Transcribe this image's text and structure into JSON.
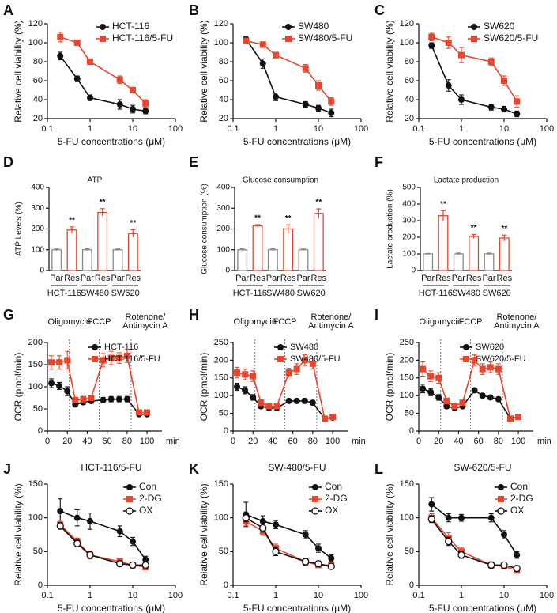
{
  "chart_data": [
    {
      "type": "line",
      "label": "A",
      "xscale": "log",
      "xlabel": "5-FU concentrations (μM)",
      "ylabel": "Relative cell viability (%)",
      "xlim": [
        0.1,
        100
      ],
      "xticks": [
        0.1,
        1,
        10,
        100
      ],
      "ylim": [
        20,
        120
      ],
      "yticks": [
        20,
        40,
        60,
        80,
        100,
        120
      ],
      "legend": "upper right",
      "x": [
        0.2,
        0.5,
        1,
        5,
        10,
        20
      ],
      "series": [
        {
          "name": "HCT-116",
          "color": "#111111",
          "marker": "circle",
          "values": [
            86,
            62,
            42,
            35,
            30,
            28
          ],
          "errors": [
            4,
            3,
            3,
            5,
            4,
            3
          ]
        },
        {
          "name": "HCT-116/5-FU",
          "color": "#e8452c",
          "marker": "square",
          "values": [
            106,
            100,
            80,
            61,
            50,
            36
          ],
          "errors": [
            5,
            3,
            3,
            4,
            3,
            4
          ]
        }
      ]
    },
    {
      "type": "line",
      "label": "B",
      "xscale": "log",
      "xlabel": "5-FU concentrations (μM)",
      "ylabel": "Relative cell viability (%)",
      "xlim": [
        0.1,
        100
      ],
      "xticks": [
        0.1,
        1,
        10,
        100
      ],
      "ylim": [
        20,
        120
      ],
      "yticks": [
        20,
        40,
        60,
        80,
        100,
        120
      ],
      "legend": "upper right",
      "x": [
        0.2,
        0.5,
        1,
        5,
        10,
        20
      ],
      "series": [
        {
          "name": "SW480",
          "color": "#111111",
          "marker": "circle",
          "values": [
            104,
            78,
            43,
            35,
            31,
            26
          ],
          "errors": [
            3,
            5,
            4,
            3,
            3,
            4
          ]
        },
        {
          "name": "SW480/5-FU",
          "color": "#e8452c",
          "marker": "square",
          "values": [
            102,
            98,
            87,
            73,
            55,
            38
          ],
          "errors": [
            3,
            3,
            3,
            4,
            5,
            4
          ]
        }
      ]
    },
    {
      "type": "line",
      "label": "C",
      "xscale": "log",
      "xlabel": "5-FU concentrations (μM)",
      "ylabel": "Relative cell viability (%)",
      "xlim": [
        0.1,
        100
      ],
      "xticks": [
        0.1,
        1,
        10,
        100
      ],
      "ylim": [
        20,
        120
      ],
      "yticks": [
        20,
        40,
        60,
        80,
        100,
        120
      ],
      "legend": "upper right",
      "x": [
        0.2,
        0.5,
        1,
        5,
        10,
        20
      ],
      "series": [
        {
          "name": "SW620",
          "color": "#111111",
          "marker": "circle",
          "values": [
            97,
            55,
            40,
            32,
            30,
            25
          ],
          "errors": [
            3,
            6,
            5,
            3,
            3,
            3
          ]
        },
        {
          "name": "SW620/5-FU",
          "color": "#e8452c",
          "marker": "square",
          "values": [
            106,
            100,
            87,
            80,
            60,
            38
          ],
          "errors": [
            4,
            6,
            8,
            4,
            5,
            6
          ]
        }
      ]
    },
    {
      "type": "bar",
      "label": "D",
      "title": "ATP",
      "ylabel": "ATP Levels (%)",
      "ylim": [
        0,
        400
      ],
      "yticks": [
        0,
        100,
        200,
        300,
        400
      ],
      "categories": [
        "Par",
        "Res",
        "Par",
        "Res",
        "Par",
        "Res"
      ],
      "groups": [
        "HCT-116",
        "SW480",
        "SW620"
      ],
      "colors": [
        "#888888",
        "#e8452c",
        "#888888",
        "#e8452c",
        "#888888",
        "#e8452c"
      ],
      "values": [
        100,
        195,
        100,
        280,
        100,
        178
      ],
      "errors": [
        5,
        15,
        5,
        18,
        4,
        18
      ],
      "significance": [
        null,
        "**",
        null,
        "**",
        null,
        "**"
      ]
    },
    {
      "type": "bar",
      "label": "E",
      "title": "Glucose consumption",
      "ylabel": "Glucose consumption (%)",
      "ylim": [
        0,
        400
      ],
      "yticks": [
        0,
        100,
        200,
        300,
        400
      ],
      "categories": [
        "Par",
        "Res",
        "Par",
        "Res",
        "Par",
        "Res"
      ],
      "groups": [
        "HCT-116",
        "SW480",
        "SW620"
      ],
      "colors": [
        "#888888",
        "#e8452c",
        "#888888",
        "#e8452c",
        "#888888",
        "#e8452c"
      ],
      "values": [
        100,
        215,
        100,
        200,
        100,
        275
      ],
      "errors": [
        5,
        6,
        5,
        20,
        4,
        22
      ],
      "significance": [
        null,
        "**",
        null,
        "**",
        null,
        "**"
      ]
    },
    {
      "type": "bar",
      "label": "F",
      "title": "Lactate production",
      "ylabel": "Lactate production (%)",
      "ylim": [
        0,
        500
      ],
      "yticks": [
        0,
        100,
        200,
        300,
        400,
        500
      ],
      "categories": [
        "Par",
        "Res",
        "Par",
        "Res",
        "Par",
        "Res"
      ],
      "groups": [
        "HCT-116",
        "SW480",
        "SW620"
      ],
      "colors": [
        "#888888",
        "#e8452c",
        "#888888",
        "#e8452c",
        "#888888",
        "#e8452c"
      ],
      "values": [
        100,
        330,
        100,
        205,
        100,
        195
      ],
      "errors": [
        3,
        30,
        5,
        12,
        5,
        18
      ],
      "significance": [
        null,
        "**",
        null,
        "**",
        null,
        "**"
      ]
    },
    {
      "type": "line",
      "label": "G",
      "xscale": "linear",
      "xlabel": "min",
      "ylabel": "OCR (pmol/min)",
      "xlim": [
        0,
        115
      ],
      "xticks": [
        0,
        20,
        40,
        60,
        80,
        100
      ],
      "ylim": [
        0,
        200
      ],
      "yticks": [
        0,
        50,
        100,
        150,
        200
      ],
      "legend": "upper right",
      "annotations": [
        {
          "label": [
            "Oligomycin"
          ],
          "x": 22
        },
        {
          "label": [
            "FCCP"
          ],
          "x": 52
        },
        {
          "label": [
            "Rotenone/",
            "Antimycin A"
          ],
          "x": 84
        }
      ],
      "x": [
        4,
        12,
        20,
        28,
        36,
        44,
        56,
        64,
        72,
        80,
        92,
        100
      ],
      "series": [
        {
          "name": "HCT-116",
          "color": "#111111",
          "marker": "circle",
          "values": [
            108,
            102,
            90,
            60,
            65,
            68,
            70,
            72,
            72,
            72,
            38,
            38
          ],
          "errors": [
            10,
            8,
            10,
            5,
            5,
            5,
            6,
            6,
            6,
            6,
            3,
            3
          ]
        },
        {
          "name": "HCT-116/5-FU",
          "color": "#e8452c",
          "marker": "square",
          "values": [
            155,
            155,
            160,
            70,
            72,
            75,
            160,
            165,
            165,
            170,
            42,
            42
          ],
          "errors": [
            15,
            15,
            20,
            6,
            6,
            6,
            15,
            15,
            12,
            15,
            4,
            4
          ]
        }
      ]
    },
    {
      "type": "line",
      "label": "H",
      "xscale": "linear",
      "xlabel": "min",
      "ylabel": "OCR (pmol/min)",
      "xlim": [
        0,
        115
      ],
      "xticks": [
        0,
        20,
        40,
        60,
        80,
        100
      ],
      "ylim": [
        0,
        250
      ],
      "yticks": [
        0,
        50,
        100,
        150,
        200,
        250
      ],
      "legend": "upper right",
      "annotations": [
        {
          "label": [
            "Oligomycin"
          ],
          "x": 22
        },
        {
          "label": [
            "FCCP"
          ],
          "x": 52
        },
        {
          "label": [
            "Rotenone/",
            "Antimycin A"
          ],
          "x": 84
        }
      ],
      "x": [
        4,
        12,
        20,
        28,
        36,
        44,
        56,
        64,
        72,
        80,
        92,
        100
      ],
      "series": [
        {
          "name": "SW480",
          "color": "#111111",
          "marker": "circle",
          "values": [
            125,
            115,
            95,
            70,
            65,
            65,
            85,
            85,
            85,
            80,
            35,
            38
          ],
          "errors": [
            10,
            10,
            8,
            6,
            5,
            5,
            6,
            6,
            6,
            6,
            3,
            3
          ]
        },
        {
          "name": "SW480/5-FU",
          "color": "#e8452c",
          "marker": "square",
          "values": [
            165,
            160,
            155,
            80,
            70,
            70,
            165,
            175,
            200,
            190,
            35,
            40
          ],
          "errors": [
            15,
            15,
            15,
            8,
            6,
            6,
            12,
            15,
            15,
            15,
            4,
            4
          ]
        }
      ]
    },
    {
      "type": "line",
      "label": "I",
      "xscale": "linear",
      "xlabel": "min",
      "ylabel": "OCR (pmol/min)",
      "xlim": [
        0,
        115
      ],
      "xticks": [
        0,
        20,
        40,
        60,
        80,
        100
      ],
      "ylim": [
        0,
        250
      ],
      "yticks": [
        0,
        50,
        100,
        150,
        200,
        250
      ],
      "legend": "upper right",
      "annotations": [
        {
          "label": [
            "Oligomycin"
          ],
          "x": 22
        },
        {
          "label": [
            "FCCP"
          ],
          "x": 52
        },
        {
          "label": [
            "Rotenone/",
            "Antimycin A"
          ],
          "x": 84
        }
      ],
      "x": [
        4,
        12,
        20,
        28,
        36,
        44,
        56,
        64,
        72,
        80,
        92,
        100
      ],
      "series": [
        {
          "name": "SW620",
          "color": "#111111",
          "marker": "circle",
          "values": [
            120,
            110,
            95,
            70,
            65,
            70,
            115,
            100,
            95,
            90,
            35,
            40
          ],
          "errors": [
            12,
            10,
            8,
            6,
            5,
            5,
            6,
            6,
            6,
            6,
            3,
            3
          ]
        },
        {
          "name": "SW620/5-FU",
          "color": "#e8452c",
          "marker": "square",
          "values": [
            175,
            155,
            150,
            85,
            70,
            80,
            200,
            175,
            180,
            175,
            35,
            40
          ],
          "errors": [
            20,
            15,
            15,
            8,
            6,
            6,
            15,
            15,
            15,
            15,
            4,
            4
          ]
        }
      ]
    },
    {
      "type": "line",
      "label": "J",
      "title": "HCT-116/5-FU",
      "xscale": "log",
      "xlabel": "5-FU concentrations (μM)",
      "ylabel": "Relative cell viability (%)",
      "xlim": [
        0.1,
        100
      ],
      "xticks": [
        0.1,
        1,
        10,
        100
      ],
      "ylim": [
        0,
        150
      ],
      "yticks": [
        0,
        50,
        100,
        150
      ],
      "legend": "upper right",
      "x": [
        0.2,
        0.5,
        1,
        5,
        10,
        20
      ],
      "series": [
        {
          "name": "Con",
          "color": "#111111",
          "marker": "circle",
          "values": [
            110,
            100,
            95,
            80,
            65,
            38
          ],
          "errors": [
            18,
            12,
            12,
            8,
            6,
            5
          ]
        },
        {
          "name": "2-DG",
          "color": "#e8452c",
          "marker": "square",
          "values": [
            90,
            65,
            45,
            35,
            30,
            27
          ],
          "errors": [
            6,
            5,
            6,
            5,
            4,
            4
          ]
        },
        {
          "name": "OX",
          "color": "#111111",
          "marker": "open-circle",
          "values": [
            88,
            62,
            45,
            32,
            30,
            30
          ],
          "errors": [
            5,
            5,
            5,
            4,
            4,
            4
          ]
        }
      ]
    },
    {
      "type": "line",
      "label": "K",
      "title": "SW-480/5-FU",
      "xscale": "log",
      "xlabel": "5-FU concentrations (μM)",
      "ylabel": "Relative cell viability (%)",
      "xlim": [
        0.1,
        100
      ],
      "xticks": [
        0.1,
        1,
        10,
        100
      ],
      "ylim": [
        0,
        150
      ],
      "yticks": [
        0,
        50,
        100,
        150
      ],
      "legend": "upper right",
      "x": [
        0.2,
        0.5,
        1,
        5,
        10,
        20
      ],
      "series": [
        {
          "name": "Con",
          "color": "#111111",
          "marker": "circle",
          "values": [
            105,
            95,
            90,
            75,
            55,
            40
          ],
          "errors": [
            18,
            8,
            6,
            6,
            6,
            5
          ]
        },
        {
          "name": "2-DG",
          "color": "#e8452c",
          "marker": "square",
          "values": [
            95,
            80,
            55,
            35,
            30,
            30
          ],
          "errors": [
            6,
            6,
            6,
            5,
            4,
            4
          ]
        },
        {
          "name": "OX",
          "color": "#111111",
          "marker": "open-circle",
          "values": [
            100,
            85,
            50,
            35,
            32,
            28
          ],
          "errors": [
            6,
            6,
            6,
            5,
            4,
            4
          ]
        }
      ]
    },
    {
      "type": "line",
      "label": "L",
      "title": "SW-620/5-FU",
      "xscale": "log",
      "xlabel": "5-FU concentrations (μM)",
      "ylabel": "Relative cell viability (%)",
      "xlim": [
        0.1,
        100
      ],
      "xticks": [
        0.1,
        1,
        10,
        100
      ],
      "ylim": [
        0,
        150
      ],
      "yticks": [
        0,
        50,
        100,
        150
      ],
      "legend": "upper right",
      "x": [
        0.2,
        0.5,
        1,
        5,
        10,
        20
      ],
      "series": [
        {
          "name": "Con",
          "color": "#111111",
          "marker": "circle",
          "values": [
            120,
            100,
            100,
            100,
            75,
            45
          ],
          "errors": [
            10,
            6,
            5,
            6,
            6,
            5
          ]
        },
        {
          "name": "2-DG",
          "color": "#e8452c",
          "marker": "square",
          "values": [
            100,
            70,
            50,
            30,
            28,
            22
          ],
          "errors": [
            6,
            8,
            6,
            5,
            4,
            4
          ]
        },
        {
          "name": "OX",
          "color": "#111111",
          "marker": "open-circle",
          "values": [
            98,
            65,
            45,
            30,
            30,
            25
          ],
          "errors": [
            5,
            6,
            5,
            4,
            4,
            4
          ]
        }
      ]
    }
  ]
}
